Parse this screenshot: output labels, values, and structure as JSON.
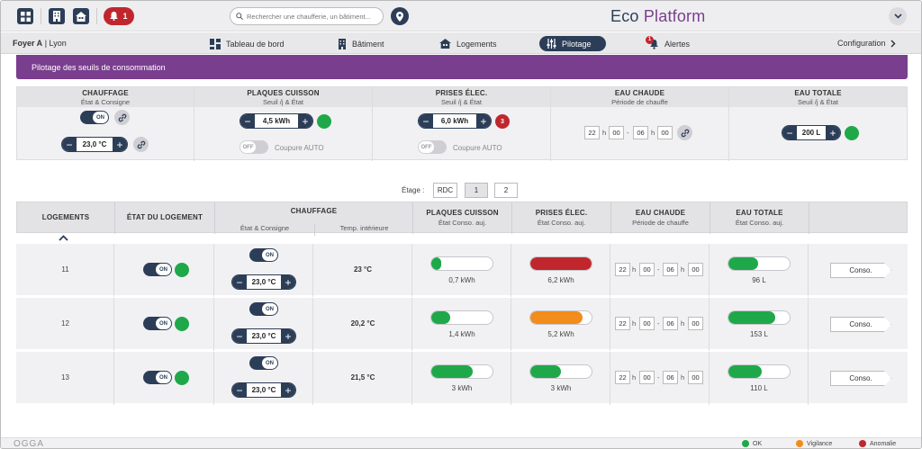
{
  "topbar": {
    "alert_count": "1",
    "search_placeholder": "Rechercher une chaufferie, un bâtiment...",
    "brand_part1": "Eco ",
    "brand_part2": "Platform"
  },
  "nav": {
    "site_name": "Foyer A",
    "site_city": "| Lyon",
    "items": [
      {
        "label": "Tableau de bord",
        "icon": "dashboard-icon"
      },
      {
        "label": "Bâtiment",
        "icon": "building-icon"
      },
      {
        "label": "Logements",
        "icon": "house-icon"
      },
      {
        "label": "Pilotage",
        "icon": "sliders-icon"
      },
      {
        "label": "Alertes",
        "icon": "bell-icon",
        "badge": "1"
      }
    ],
    "config_label": "Configuration"
  },
  "panel_title": "Pilotage des seuils de consommation",
  "thresholds": {
    "chauffage": {
      "title": "CHAUFFAGE",
      "sub": "État & Consigne",
      "toggle": "ON",
      "value": "23,0 °C"
    },
    "plaques": {
      "title": "PLAQUES CUISSON",
      "sub": "Seuil /j & État",
      "value": "4,5 kWh",
      "toggle": "OFF",
      "auto_label": "Coupure AUTO"
    },
    "prises": {
      "title": "PRISES ÉLEC.",
      "sub": "Seuil /j & État",
      "value": "6,0 kWh",
      "alert_count": "3",
      "toggle": "OFF",
      "auto_label": "Coupure AUTO"
    },
    "eau_chaude": {
      "title": "EAU CHAUDE",
      "sub": "Période de chauffe",
      "start_h": "22",
      "start_m": "00",
      "end_h": "06",
      "end_m": "00",
      "h_sep": "h",
      "dash": "-"
    },
    "eau_totale": {
      "title": "EAU TOTALE",
      "sub": "Seuil /j & État",
      "value": "200 L"
    }
  },
  "floor": {
    "label": "Étage :",
    "options": [
      "RDC",
      "1",
      "2"
    ],
    "selected": "1"
  },
  "table": {
    "headers": {
      "logements": "LOGEMENTS",
      "etat": "ÉTAT DU LOGEMENT",
      "chauffage": "CHAUFFAGE",
      "chauffage_sub1": "État & Consigne",
      "chauffage_sub2": "Temp. intérieure",
      "plaques": "PLAQUES CUISSON",
      "plaques_sub": "État Conso. auj.",
      "prises": "PRISES ÉLEC.",
      "prises_sub": "État Conso. auj.",
      "eau_chaude": "EAU CHAUDE",
      "eau_chaude_sub": "Période de chauffe",
      "eau_totale": "EAU TOTALE",
      "eau_totale_sub": "État Conso. auj."
    },
    "rows": [
      {
        "num": "11",
        "etat_toggle": "ON",
        "chauf_toggle": "ON",
        "consigne": "23,0 °C",
        "temp": "23 °C",
        "plaques_val": "0,7 kWh",
        "plaques_pct": 0.16,
        "plaques_color": "#1fa84a",
        "prises_val": "6,2 kWh",
        "prises_pct": 1.0,
        "prises_color": "#c0272d",
        "start_h": "22",
        "start_m": "00",
        "end_h": "06",
        "end_m": "00",
        "eau_val": "96 L",
        "eau_pct": 0.48,
        "eau_color": "#1fa84a",
        "conso_label": "Conso."
      },
      {
        "num": "12",
        "etat_toggle": "ON",
        "chauf_toggle": "ON",
        "consigne": "23,0 °C",
        "temp": "20,2 °C",
        "plaques_val": "1,4 kWh",
        "plaques_pct": 0.31,
        "plaques_color": "#1fa84a",
        "prises_val": "5,2 kWh",
        "prises_pct": 0.86,
        "prises_color": "#f28c1a",
        "start_h": "22",
        "start_m": "00",
        "end_h": "06",
        "end_m": "00",
        "eau_val": "153 L",
        "eau_pct": 0.77,
        "eau_color": "#1fa84a",
        "conso_label": "Conso."
      },
      {
        "num": "13",
        "etat_toggle": "ON",
        "chauf_toggle": "ON",
        "consigne": "23,0 °C",
        "temp": "21,5 °C",
        "plaques_val": "3 kWh",
        "plaques_pct": 0.67,
        "plaques_color": "#1fa84a",
        "prises_val": "3 kWh",
        "prises_pct": 0.5,
        "prises_color": "#1fa84a",
        "start_h": "22",
        "start_m": "00",
        "end_h": "06",
        "end_m": "00",
        "eau_val": "110 L",
        "eau_pct": 0.55,
        "eau_color": "#1fa84a",
        "conso_label": "Conso."
      }
    ]
  },
  "footer": {
    "logo": "OGGA",
    "legend": [
      {
        "label": "OK",
        "color": "#1fa84a"
      },
      {
        "label": "Vigilance",
        "color": "#f28c1a"
      },
      {
        "label": "Anomalie",
        "color": "#c0272d"
      }
    ]
  }
}
